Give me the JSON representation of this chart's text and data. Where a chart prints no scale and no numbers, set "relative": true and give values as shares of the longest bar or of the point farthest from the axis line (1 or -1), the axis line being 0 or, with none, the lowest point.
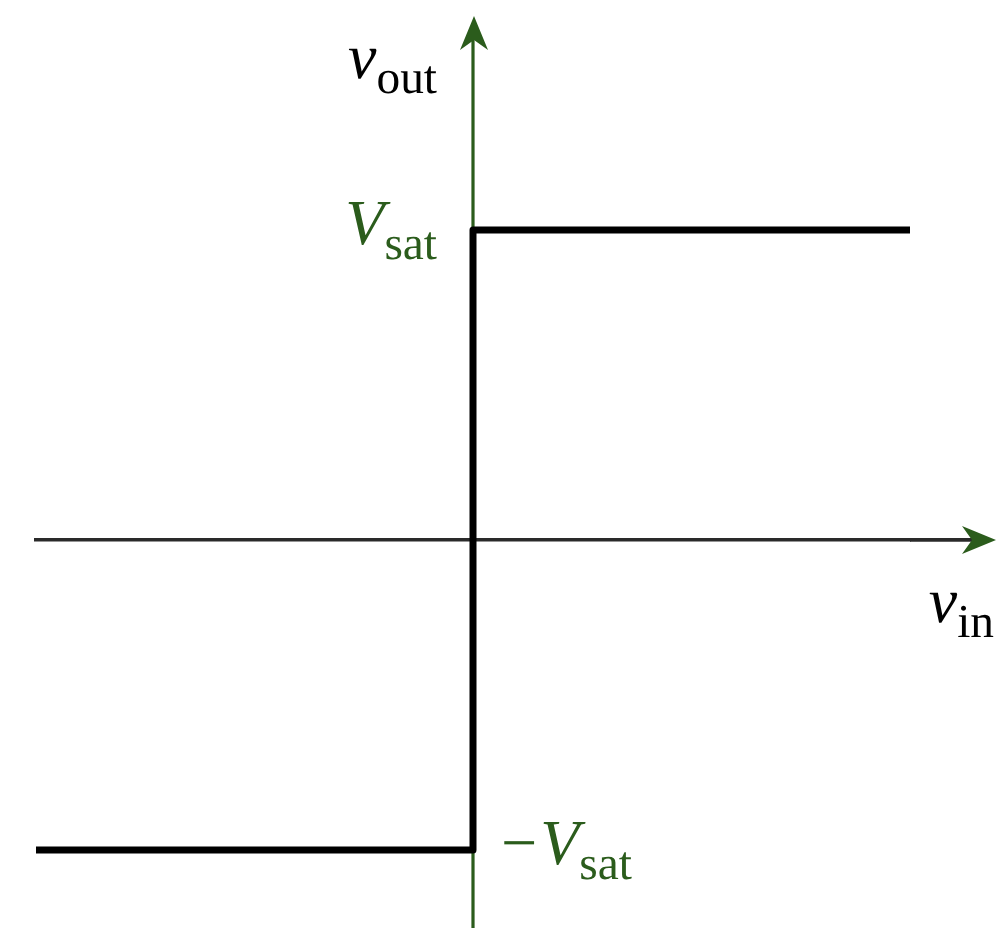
{
  "chart_data": {
    "type": "step",
    "categories": [
      null,
      null,
      null
    ],
    "relative": true,
    "series": [
      {
        "color": "#000000",
        "values": [
          -1,
          1,
          1
        ]
      }
    ],
    "xlabel": "v$_{in}$",
    "ylabel": "v$_{out}$",
    "annotations": [
      "V$_{sat}$",
      "−V$_{sat}$"
    ]
  }
}
